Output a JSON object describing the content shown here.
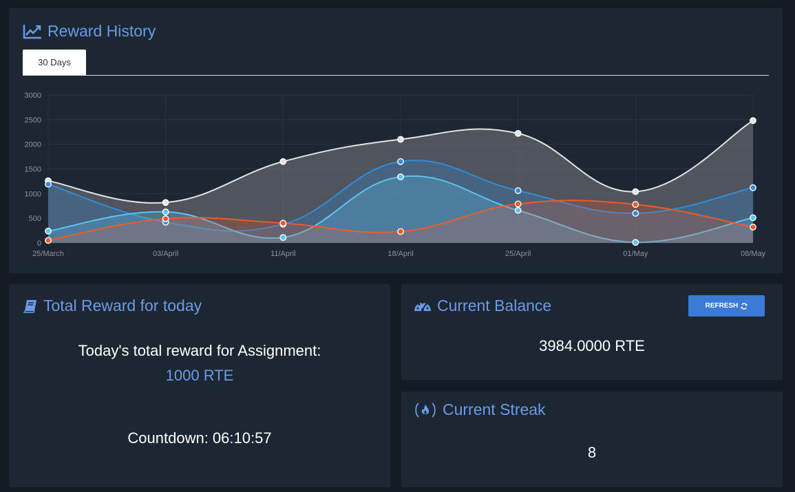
{
  "history": {
    "title": "Reward History",
    "tabs": [
      {
        "label": "30 Days",
        "active": true
      }
    ]
  },
  "chart_data": {
    "type": "area",
    "x": [
      "25/March",
      "03/April",
      "11/April",
      "18/April",
      "25/April",
      "01/May",
      "08/May"
    ],
    "ylim": [
      0,
      3000
    ],
    "yticks": [
      0,
      500,
      1000,
      1500,
      2000,
      2500,
      3000
    ],
    "grid": true,
    "series": [
      {
        "color": "#e4e4e4",
        "fill": "rgba(120,122,128,0.55)",
        "values": [
          1260,
          820,
          1650,
          2100,
          2220,
          1040,
          2480
        ]
      },
      {
        "color": "#2f8ddb",
        "fill": "rgba(47,141,219,0.28)",
        "values": [
          1190,
          420,
          380,
          1650,
          1060,
          600,
          1120
        ]
      },
      {
        "color": "#5cc3f2",
        "fill": "rgba(92,195,242,0.28)",
        "values": [
          240,
          630,
          110,
          1340,
          660,
          10,
          510
        ]
      },
      {
        "color": "#f05a28",
        "fill": "rgba(240,90,40,0.22)",
        "values": [
          50,
          490,
          400,
          230,
          790,
          780,
          320
        ]
      }
    ]
  },
  "today": {
    "title": "Total Reward for today",
    "label": "Today's total reward for Assignment:",
    "value": "1000 RTE",
    "countdown": "Countdown: 06:10:57"
  },
  "balance": {
    "title": "Current Balance",
    "refresh_label": "REFRESH",
    "value": "3984.0000 RTE"
  },
  "streak": {
    "title": "Current Streak",
    "value": "8"
  },
  "colors": {
    "accent": "#6b9be8",
    "card": "#1d2734",
    "background": "#141b24",
    "button": "#3b7ad6"
  }
}
